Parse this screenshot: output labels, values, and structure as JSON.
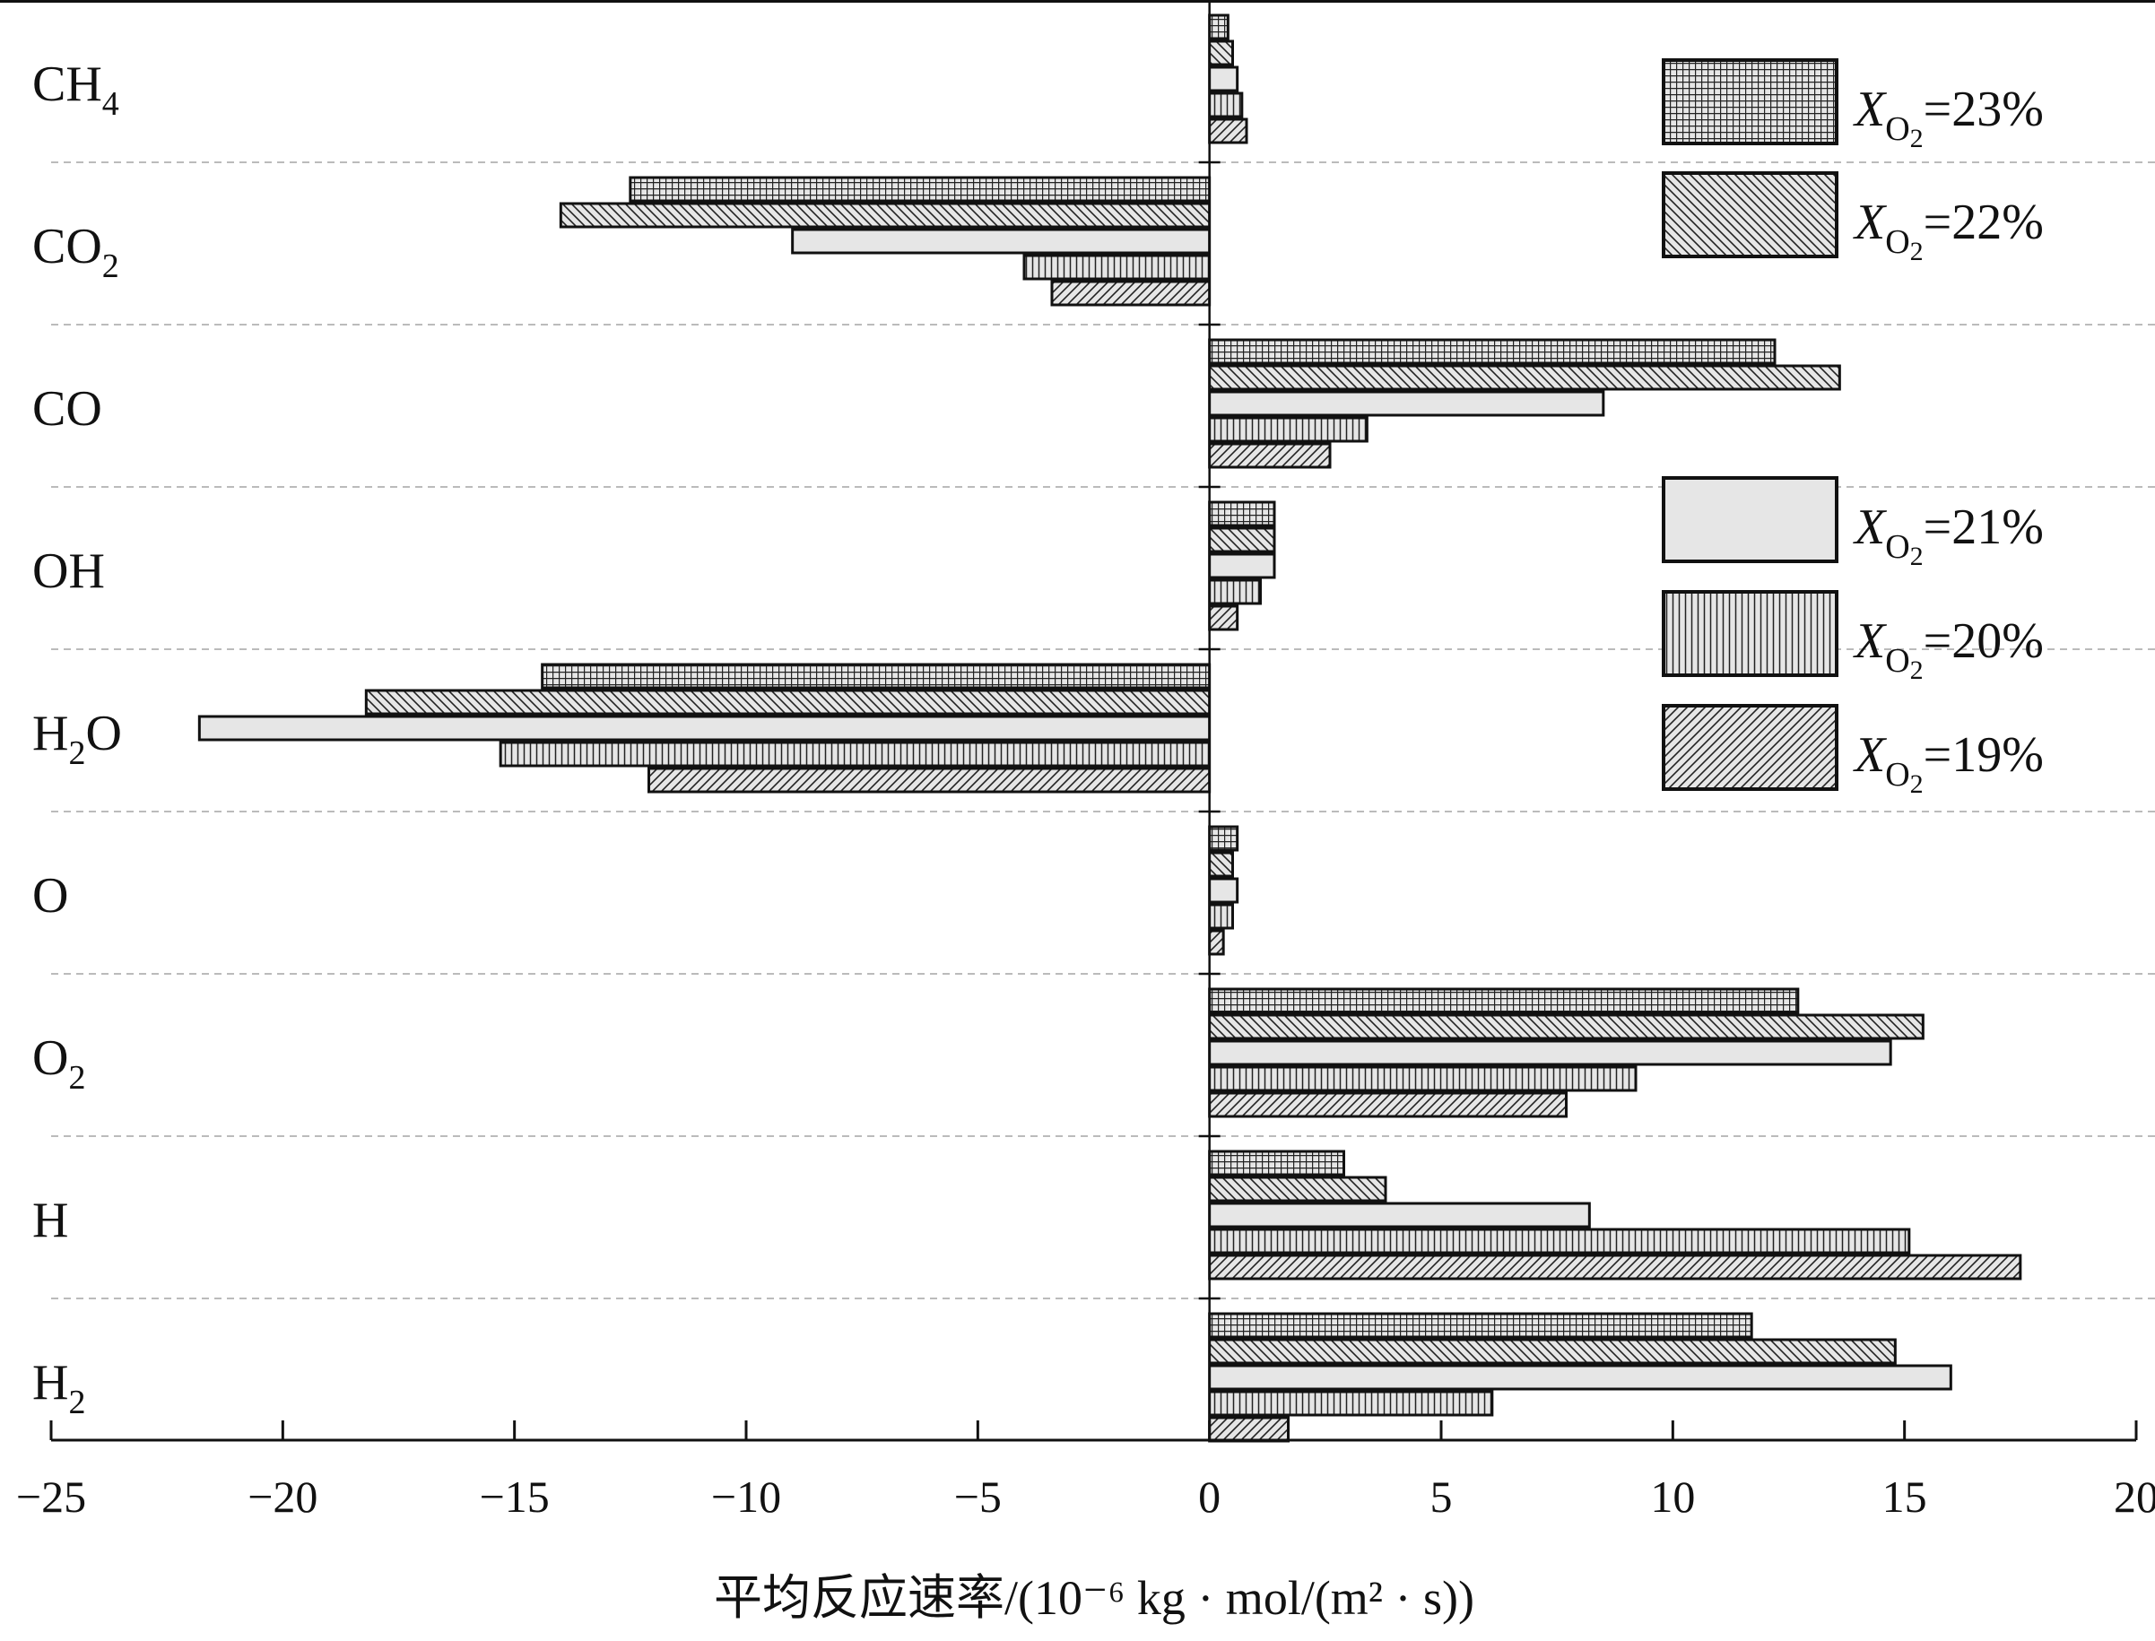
{
  "chart_data": {
    "type": "bar",
    "orientation": "horizontal",
    "categories": [
      {
        "base": "CH",
        "sub": "4"
      },
      {
        "base": "CO",
        "sub": "2"
      },
      {
        "base": "CO",
        "sub": ""
      },
      {
        "base": "OH",
        "sub": ""
      },
      {
        "base": "H",
        "sub": "2",
        "tail": "O"
      },
      {
        "base": "O",
        "sub": ""
      },
      {
        "base": "O",
        "sub": "2"
      },
      {
        "base": "H",
        "sub": ""
      },
      {
        "base": "H",
        "sub": "2"
      }
    ],
    "series": [
      {
        "name": "23%",
        "pattern": "grid",
        "values": [
          0.4,
          -12.5,
          12.2,
          1.4,
          -14.4,
          0.6,
          12.7,
          2.9,
          11.7
        ]
      },
      {
        "name": "22%",
        "pattern": "diag-back",
        "values": [
          0.5,
          -14.0,
          13.6,
          1.4,
          -18.2,
          0.5,
          15.4,
          3.8,
          14.8
        ]
      },
      {
        "name": "21%",
        "pattern": "solid",
        "values": [
          0.6,
          -9.0,
          8.5,
          1.4,
          -21.8,
          0.6,
          14.7,
          8.2,
          16.0
        ]
      },
      {
        "name": "20%",
        "pattern": "vertical",
        "values": [
          0.7,
          -4.0,
          3.4,
          1.1,
          -15.3,
          0.5,
          9.2,
          15.1,
          6.1
        ]
      },
      {
        "name": "19%",
        "pattern": "diag-fwd",
        "values": [
          0.8,
          -3.4,
          2.6,
          0.6,
          -12.1,
          0.3,
          7.7,
          17.5,
          1.7
        ]
      }
    ],
    "legend_prefix": "X",
    "legend_sub": "O2",
    "legend_sub_display": "O",
    "legend_sub_digit": "2",
    "xlim": [
      -25,
      20
    ],
    "xticks": [
      "−25",
      "−20",
      "−15",
      "−10",
      "−5",
      "0",
      "5",
      "10",
      "15",
      "20"
    ],
    "xtick_values": [
      -25,
      -20,
      -15,
      -10,
      -5,
      0,
      5,
      10,
      15,
      20
    ],
    "xlabel": "平均反应速率/(10⁻⁶ kg · mol/(m² · s))",
    "grid": "horizontal dashed separators",
    "legend_placement": "right, two groups"
  },
  "colors": {
    "bar_fill": "#e6e6e6",
    "pattern_stroke": "#222222",
    "outline": "#111111",
    "grid": "#bbbbbb"
  }
}
